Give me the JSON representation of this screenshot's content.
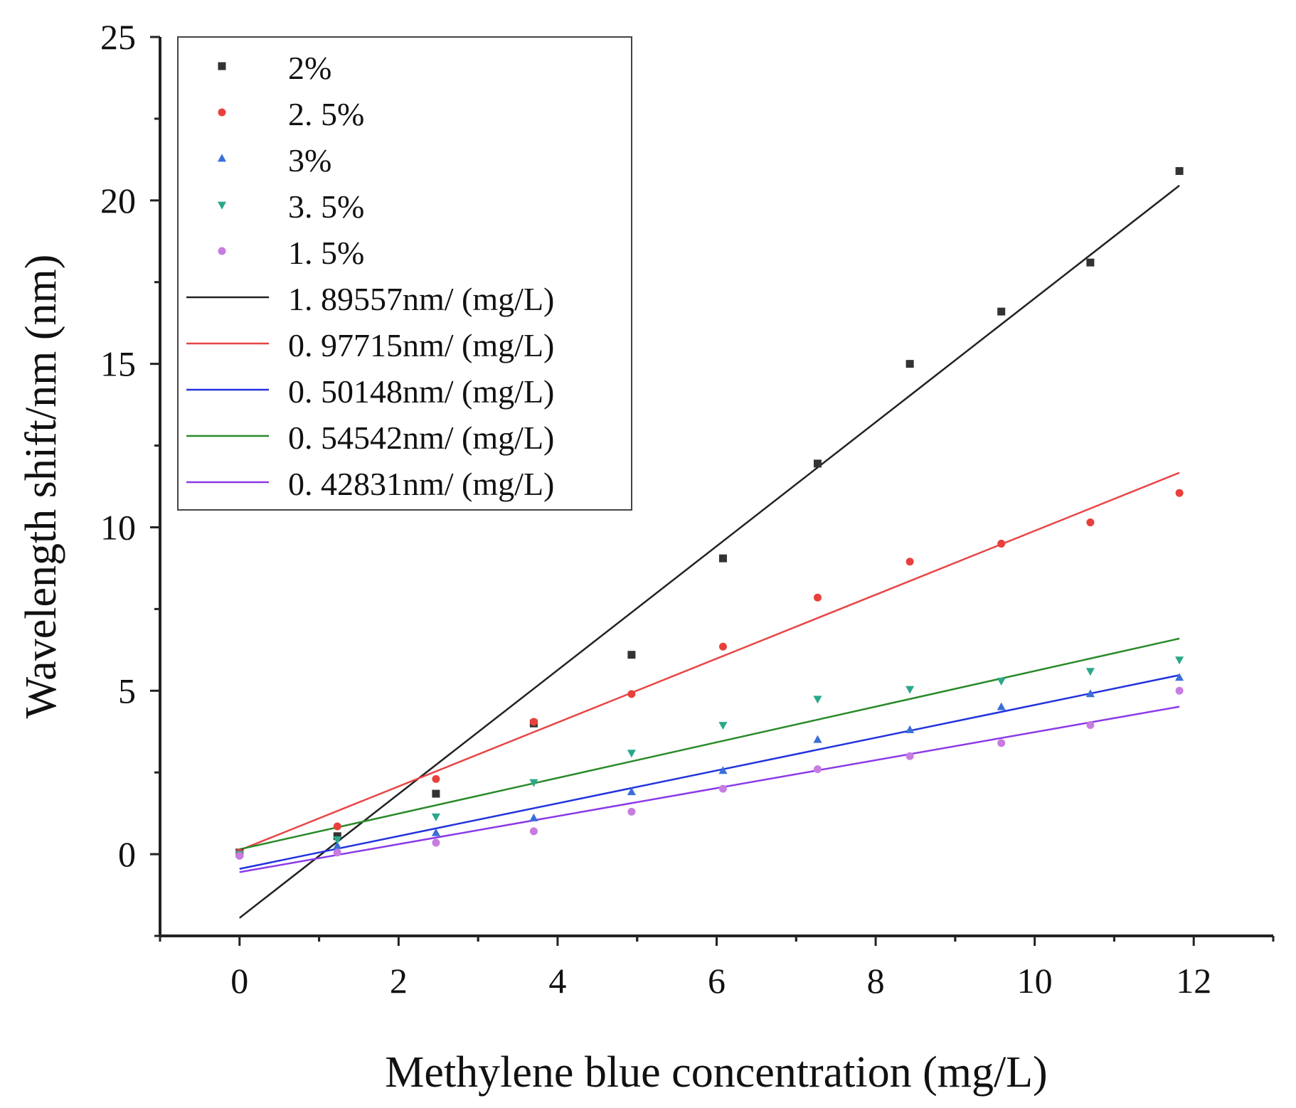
{
  "chart_data": {
    "type": "scatter",
    "title": "",
    "xlabel": "Methylene blue concentration (mg/L)",
    "ylabel": "Wavelength shift/nm (nm)",
    "xlim": [
      -1,
      13
    ],
    "ylim": [
      -2.5,
      25
    ],
    "xticks": [
      "0",
      "2",
      "4",
      "6",
      "8",
      "10",
      "12"
    ],
    "yticks": [
      "0",
      "5",
      "10",
      "15",
      "20",
      "25"
    ],
    "x": [
      0,
      1.23,
      2.47,
      3.7,
      4.93,
      6.08,
      7.27,
      8.43,
      9.58,
      10.7,
      11.82
    ],
    "series": [
      {
        "name": "2%",
        "color": "#333333",
        "marker": "square",
        "values": [
          0.05,
          0.55,
          1.85,
          4.0,
          6.1,
          9.05,
          11.95,
          15.0,
          16.6,
          18.1,
          20.9
        ]
      },
      {
        "name": "2. 5%",
        "color": "#e8403c",
        "marker": "circle",
        "values": [
          0.05,
          0.85,
          2.3,
          4.05,
          4.9,
          6.35,
          7.85,
          8.95,
          9.5,
          10.15,
          11.05
        ]
      },
      {
        "name": "3%",
        "color": "#3a6fd8",
        "marker": "triangle-up",
        "values": [
          0.0,
          0.25,
          0.65,
          1.1,
          1.9,
          2.55,
          3.5,
          3.8,
          4.5,
          4.9,
          5.4
        ]
      },
      {
        "name": "3. 5%",
        "color": "#2aa88a",
        "marker": "triangle-down",
        "values": [
          0.0,
          0.45,
          1.15,
          2.2,
          3.1,
          3.95,
          4.75,
          5.05,
          5.3,
          5.6,
          5.95
        ]
      },
      {
        "name": "1. 5%",
        "color": "#c77ce0",
        "marker": "circle",
        "values": [
          -0.05,
          0.05,
          0.35,
          0.7,
          1.3,
          2.0,
          2.6,
          3.0,
          3.4,
          3.95,
          5.0
        ]
      }
    ],
    "fits": [
      {
        "name": "1. 89557nm/ (mg/L)",
        "color": "#222222",
        "slope": 1.89557,
        "intercept": -1.95,
        "x_range": [
          0,
          11.82
        ]
      },
      {
        "name": "0. 97715nm/ (mg/L)",
        "color": "#e84545",
        "slope": 0.97715,
        "intercept": 0.12,
        "x_range": [
          0,
          11.82
        ]
      },
      {
        "name": "0. 50148nm/ (mg/L)",
        "color": "#2233dd",
        "slope": 0.50148,
        "intercept": -0.45,
        "x_range": [
          0,
          11.82
        ]
      },
      {
        "name": "0. 54542nm/ (mg/L)",
        "color": "#2a8a2a",
        "slope": 0.54542,
        "intercept": 0.15,
        "x_range": [
          0,
          11.82
        ]
      },
      {
        "name": "0. 42831nm/ (mg/L)",
        "color": "#8a3ae8",
        "slope": 0.42831,
        "intercept": -0.55,
        "x_range": [
          0,
          11.82
        ]
      }
    ],
    "legend_position": "top-left"
  }
}
